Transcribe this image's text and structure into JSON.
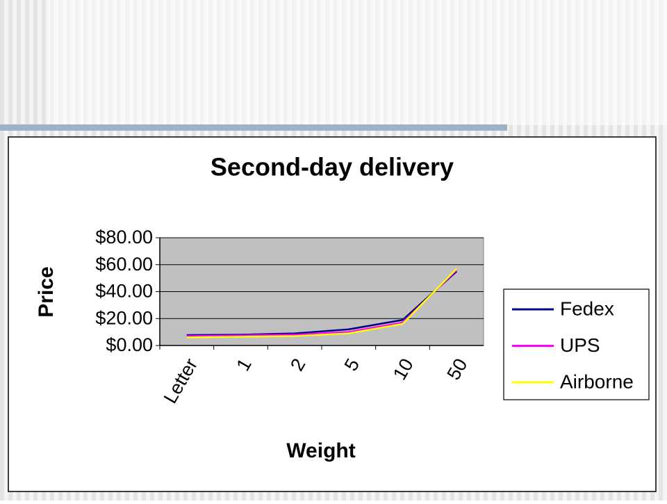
{
  "chart_data": {
    "type": "line",
    "title": "Second-day delivery",
    "x_label": "Weight",
    "y_label": "Price",
    "categories": [
      "Letter",
      "1",
      "2",
      "5",
      "10",
      "50"
    ],
    "series": [
      {
        "name": "Fedex",
        "color": "#000080",
        "values": [
          7.75,
          8,
          9,
          12,
          19,
          55
        ]
      },
      {
        "name": "UPS",
        "color": "#ff00ff",
        "values": [
          7,
          7.5,
          8,
          10,
          17,
          56
        ]
      },
      {
        "name": "Airborne",
        "color": "#ffff00",
        "values": [
          6,
          6.5,
          7,
          9,
          16,
          57
        ]
      }
    ],
    "ylim": [
      0,
      80
    ],
    "yticks": [
      {
        "value": 0,
        "label": "$0.00"
      },
      {
        "value": 20,
        "label": "$20.00"
      },
      {
        "value": 40,
        "label": "$40.00"
      },
      {
        "value": 60,
        "label": "$60.00"
      },
      {
        "value": 80,
        "label": "$80.00"
      }
    ],
    "grid": true,
    "legend": "right",
    "plot_background": "#c0c0c0"
  }
}
